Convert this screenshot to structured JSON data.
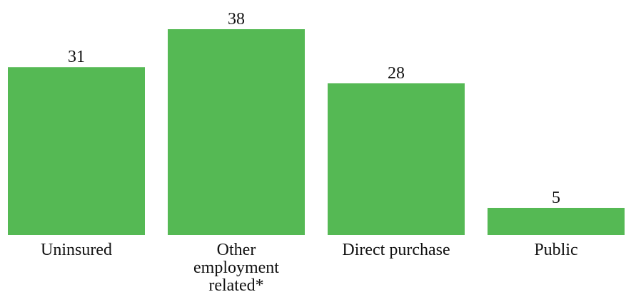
{
  "chart_data": {
    "type": "bar",
    "categories": [
      "Uninsured",
      "Other employment related*",
      "Direct purchase",
      "Public"
    ],
    "category_lines": [
      [
        "Uninsured"
      ],
      [
        "Other",
        "employment",
        "related*"
      ],
      [
        "Direct purchase"
      ],
      [
        "Public"
      ]
    ],
    "values": [
      31,
      38,
      28,
      5
    ],
    "data_labels": [
      "31",
      "38",
      "28",
      "5"
    ],
    "title": "",
    "xlabel": "",
    "ylabel": "",
    "ylim": [
      0,
      38
    ],
    "grid": false,
    "legend": "none",
    "bar_color": "#55b954"
  }
}
